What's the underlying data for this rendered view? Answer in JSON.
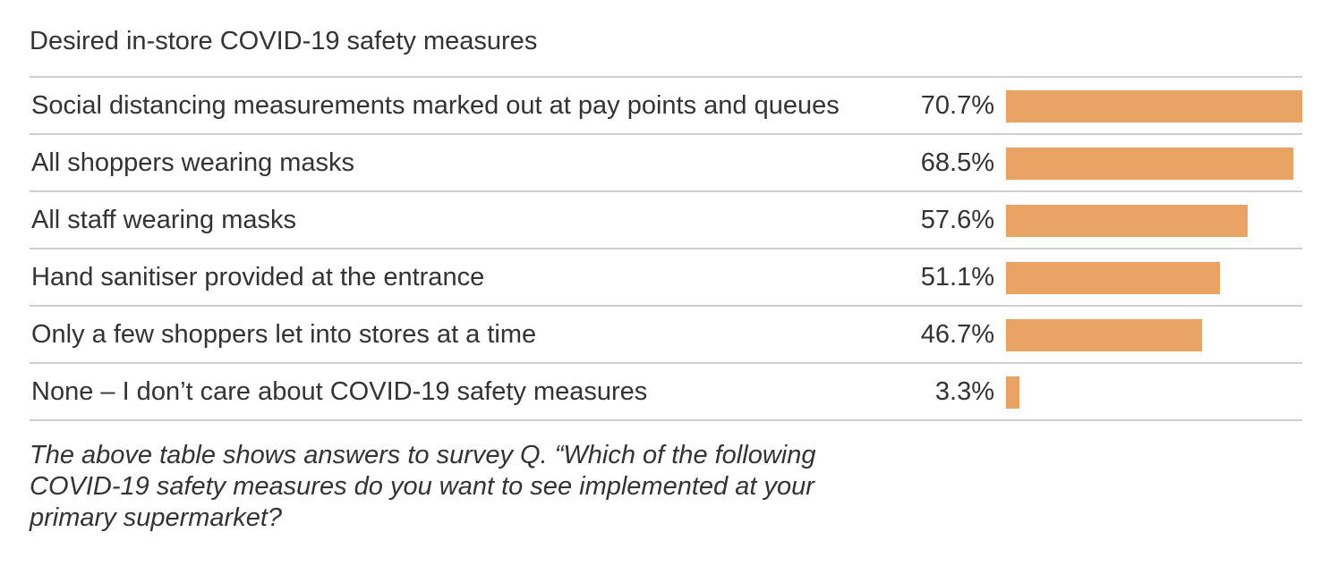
{
  "chart_data": {
    "type": "bar",
    "orientation": "horizontal",
    "title": "Desired in-store COVID-19 safety measures",
    "categories": [
      "Social distancing measurements marked out at pay points and queues",
      "All shoppers wearing masks",
      "All staff wearing masks",
      "Hand sanitiser provided at the entrance",
      "Only a few shoppers let into stores at a time",
      "None – I don’t care about COVID-19 safety measures"
    ],
    "values": [
      70.7,
      68.5,
      57.6,
      51.1,
      46.7,
      3.3
    ],
    "value_labels": [
      "70.7%",
      "68.5%",
      "57.6%",
      "51.1%",
      "46.7%",
      "3.3%"
    ],
    "unit": "%",
    "bar_color": "#e9a365",
    "grid": false,
    "note": "The above table shows answers to survey Q. “Which of the following COVID-19 safety measures do you want to see implemented at your primary supermarket?"
  }
}
